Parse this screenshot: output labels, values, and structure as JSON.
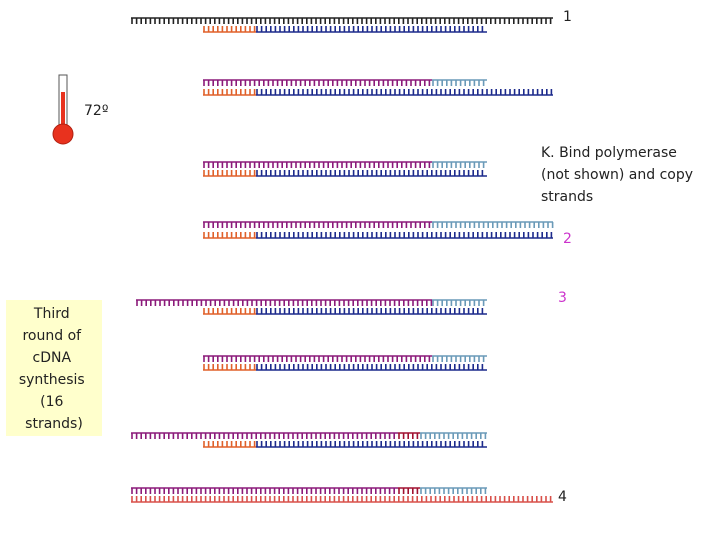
{
  "labels": {
    "round_1": "1",
    "round_2": "2",
    "round_3": "3",
    "round_4": "4",
    "temperature": "72º"
  },
  "step_note": {
    "lines": [
      "K. Bind polymerase",
      "(not shown) and copy",
      "strands"
    ]
  },
  "side_box": {
    "lines": [
      "Third",
      "round of",
      "cDNA",
      "synthesis",
      "(16",
      "strands)"
    ]
  }
}
